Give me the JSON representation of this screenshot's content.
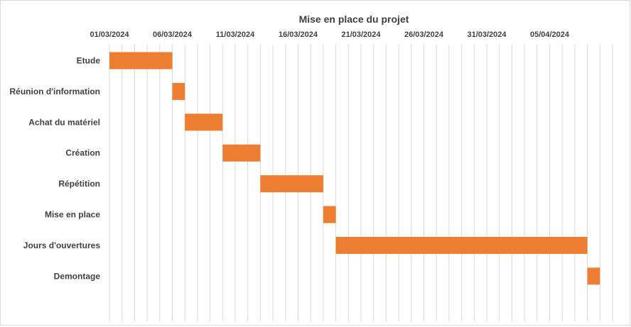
{
  "chart_data": {
    "type": "bar",
    "orientation": "horizontal-gantt",
    "title": "Mise en place du projet",
    "x_axis": {
      "position": "top",
      "min": "2024-03-01",
      "max": "2024-04-10",
      "tick_labels": [
        "01/03/2024",
        "06/03/2024",
        "11/03/2024",
        "16/03/2024",
        "21/03/2024",
        "26/03/2024",
        "31/03/2024",
        "05/04/2024"
      ],
      "grid": true,
      "minor_grid": "daily"
    },
    "series": [
      {
        "color": "#ED7D31",
        "tasks": [
          {
            "label": "Etude",
            "start": "2024-03-01",
            "end": "2024-03-06"
          },
          {
            "label": "Réunion d'information",
            "start": "2024-03-06",
            "end": "2024-03-07"
          },
          {
            "label": "Achat du matériel",
            "start": "2024-03-07",
            "end": "2024-03-10"
          },
          {
            "label": "Création",
            "start": "2024-03-10",
            "end": "2024-03-13"
          },
          {
            "label": "Répétition",
            "start": "2024-03-13",
            "end": "2024-03-18"
          },
          {
            "label": "Mise en place",
            "start": "2024-03-18",
            "end": "2024-03-19"
          },
          {
            "label": "Jours d'ouvertures",
            "start": "2024-03-19",
            "end": "2024-04-08"
          },
          {
            "label": "Demontage",
            "start": "2024-04-08",
            "end": "2024-04-09"
          }
        ]
      }
    ]
  }
}
